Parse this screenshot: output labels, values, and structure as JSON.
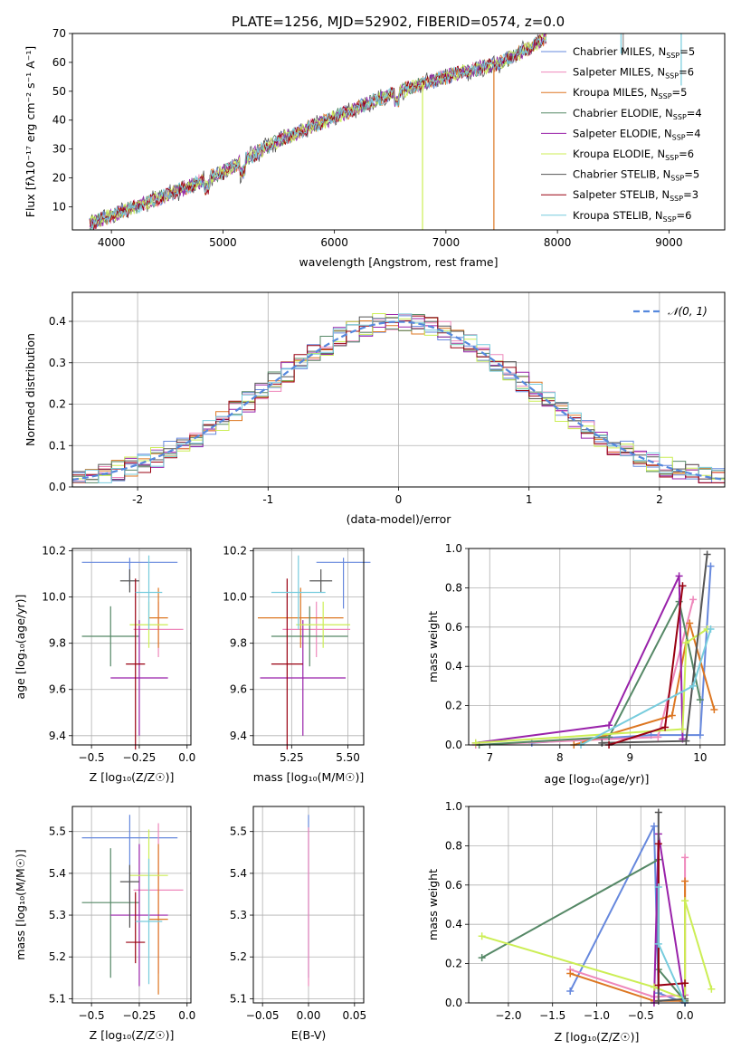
{
  "figure_title": "PLATE=1256, MJD=52902, FIBERID=0574, z=0.0",
  "series_colors": [
    "#6688dd",
    "#ee88bb",
    "#dd7722",
    "#558866",
    "#9922aa",
    "#ccee55",
    "#555555",
    "#990011",
    "#77ccdd"
  ],
  "chart_data": [
    {
      "type": "line",
      "panel": "spectrum",
      "xlabel": "wavelength [Angstrom, rest frame]",
      "ylabel": "Flux [f",
      "ylabel_full": "Flux [fλ10⁻¹⁷ erg cm⁻² s⁻¹ A⁻¹]",
      "xlim": [
        3650,
        9500
      ],
      "ylim": [
        2,
        70
      ],
      "x_ticks": [
        4000,
        5000,
        6000,
        7000,
        8000,
        9000
      ],
      "y_ticks": [
        10,
        20,
        30,
        40,
        50,
        60,
        70
      ],
      "grid": false,
      "legend_position": "right",
      "legend": [
        "Chabrier MILES, N_SSP=5",
        "Salpeter MILES, N_SSP=6",
        "Kroupa MILES, N_SSP=5",
        "Chabrier ELODIE, N_SSP=4",
        "Salpeter ELODIE, N_SSP=4",
        "Kroupa ELODIE, N_SSP=6",
        "Chabrier STELIB, N_SSP=5",
        "Salpeter STELIB, N_SSP=3",
        "Kroupa STELIB, N_SSP=6"
      ],
      "legend_text": [
        {
          "pre": "Chabrier MILES, N",
          "sub": "SSP",
          "post": "=5"
        },
        {
          "pre": "Salpeter MILES, N",
          "sub": "SSP",
          "post": "=6"
        },
        {
          "pre": "Kroupa MILES, N",
          "sub": "SSP",
          "post": "=5"
        },
        {
          "pre": "Chabrier ELODIE, N",
          "sub": "SSP",
          "post": "=4"
        },
        {
          "pre": "Salpeter ELODIE, N",
          "sub": "SSP",
          "post": "=4"
        },
        {
          "pre": "Kroupa ELODIE, N",
          "sub": "SSP",
          "post": "=6"
        },
        {
          "pre": "Chabrier STELIB, N",
          "sub": "SSP",
          "post": "=5"
        },
        {
          "pre": "Salpeter STELIB, N",
          "sub": "SSP",
          "post": "=3"
        },
        {
          "pre": "Kroupa STELIB, N",
          "sub": "SSP",
          "post": "=6"
        }
      ],
      "approx_continuum": {
        "wavelength": [
          3800,
          4000,
          4500,
          5000,
          5500,
          6000,
          6500,
          7000,
          7500,
          7800
        ],
        "flux": [
          4,
          7,
          14,
          22,
          33,
          41,
          49,
          55,
          60,
          66
        ]
      }
    },
    {
      "type": "line",
      "panel": "residual-distribution",
      "xlabel": "(data-model)/error",
      "ylabel": "Normed distribution",
      "xlim": [
        -2.5,
        2.5
      ],
      "ylim": [
        0,
        0.47
      ],
      "x_ticks": [
        -2,
        -1,
        0,
        1,
        2
      ],
      "y_ticks": [
        0.0,
        0.1,
        0.2,
        0.3,
        0.4
      ],
      "grid": true,
      "legend": [
        "𝒩(0, 1)"
      ],
      "legend_position": "top-right",
      "series": [
        {
          "name": "𝒩(0, 1)",
          "style": "dashed",
          "color": "#5588dd"
        }
      ]
    },
    {
      "type": "scatter",
      "panel": "age-vs-Z",
      "xlabel": "Z [log10(Z/Z☉)]",
      "ylabel": "age [log10(age/yr)]",
      "xlim": [
        -0.6,
        0.02
      ],
      "ylim": [
        9.36,
        10.21
      ],
      "x_ticks": [
        -0.5,
        -0.25,
        0.0
      ],
      "x_tick_labels": [
        "−0.5",
        "−0.25",
        "0.0"
      ],
      "y_ticks": [
        9.4,
        9.6,
        9.8,
        10.0,
        10.2
      ],
      "grid": true,
      "points": [
        {
          "x": -0.3,
          "y": 10.15,
          "xerr": [
            0.25,
            0.25
          ],
          "yerr": [
            0.1,
            0.02
          ]
        },
        {
          "x": -0.15,
          "y": 9.86,
          "xerr": [
            0.13,
            0.13
          ],
          "yerr": [
            0.12,
            0.12
          ]
        },
        {
          "x": -0.15,
          "y": 9.91,
          "xerr": [
            0.05,
            0.05
          ],
          "yerr": [
            0.13,
            0.13
          ]
        },
        {
          "x": -0.4,
          "y": 9.83,
          "xerr": [
            0.15,
            0.15
          ],
          "yerr": [
            0.13,
            0.13
          ]
        },
        {
          "x": -0.25,
          "y": 9.65,
          "xerr": [
            0.15,
            0.15
          ],
          "yerr": [
            0.25,
            0.25
          ]
        },
        {
          "x": -0.2,
          "y": 9.88,
          "xerr": [
            0.1,
            0.1
          ],
          "yerr": [
            0.1,
            0.1
          ]
        },
        {
          "x": -0.3,
          "y": 10.07,
          "xerr": [
            0.05,
            0.05
          ],
          "yerr": [
            0.05,
            0.05
          ]
        },
        {
          "x": -0.27,
          "y": 9.71,
          "xerr": [
            0.05,
            0.05
          ],
          "yerr": [
            0.37,
            0.37
          ]
        },
        {
          "x": -0.2,
          "y": 10.02,
          "xerr": [
            0.07,
            0.07
          ],
          "yerr": [
            0.16,
            0.16
          ]
        }
      ]
    },
    {
      "type": "scatter",
      "panel": "age-vs-mass",
      "xlabel": "mass [log10(M/M☉)]",
      "ylabel": "",
      "xlim": [
        5.08,
        5.57
      ],
      "ylim": [
        9.36,
        10.21
      ],
      "x_ticks": [
        5.25,
        5.5
      ],
      "y_ticks": [
        9.4,
        9.6,
        9.8,
        10.0,
        10.2
      ],
      "grid": true,
      "points": [
        {
          "x": 5.48,
          "y": 10.15,
          "xerr": [
            0.12,
            0.12
          ],
          "yerr": [
            0.2,
            0.02
          ]
        },
        {
          "x": 5.36,
          "y": 9.86,
          "xerr": [
            0.15,
            0.15
          ],
          "yerr": [
            0.12,
            0.12
          ]
        },
        {
          "x": 5.29,
          "y": 9.91,
          "xerr": [
            0.19,
            0.19
          ],
          "yerr": [
            0.13,
            0.13
          ]
        },
        {
          "x": 5.33,
          "y": 9.83,
          "xerr": [
            0.17,
            0.17
          ],
          "yerr": [
            0.13,
            0.13
          ]
        },
        {
          "x": 5.3,
          "y": 9.65,
          "xerr": [
            0.19,
            0.19
          ],
          "yerr": [
            0.25,
            0.25
          ]
        },
        {
          "x": 5.39,
          "y": 9.88,
          "xerr": [
            0.12,
            0.12
          ],
          "yerr": [
            0.1,
            0.1
          ]
        },
        {
          "x": 5.38,
          "y": 10.07,
          "xerr": [
            0.05,
            0.05
          ],
          "yerr": [
            0.05,
            0.05
          ]
        },
        {
          "x": 5.23,
          "y": 9.71,
          "xerr": [
            0.07,
            0.07
          ],
          "yerr": [
            0.37,
            0.37
          ]
        },
        {
          "x": 5.28,
          "y": 10.02,
          "xerr": [
            0.12,
            0.12
          ],
          "yerr": [
            0.16,
            0.16
          ]
        }
      ]
    },
    {
      "type": "line",
      "panel": "mass-weight-vs-age",
      "xlabel": "age [log10(age/yr)]",
      "ylabel": "mass weight",
      "xlim": [
        6.7,
        10.35
      ],
      "ylim": [
        0.0,
        1.0
      ],
      "x_ticks": [
        7,
        8,
        9,
        10
      ],
      "y_ticks": [
        0.0,
        0.2,
        0.4,
        0.6,
        0.8,
        1.0
      ],
      "grid": true,
      "series": [
        {
          "x": [
            7.6,
            9.3,
            10.0,
            10.15
          ],
          "y": [
            0.01,
            0.05,
            0.05,
            0.91
          ]
        },
        {
          "x": [
            6.8,
            9.4,
            9.9
          ],
          "y": [
            0.0,
            0.04,
            0.74
          ]
        },
        {
          "x": [
            8.2,
            9.6,
            9.85,
            10.2
          ],
          "y": [
            0.0,
            0.15,
            0.62,
            0.18
          ]
        },
        {
          "x": [
            6.85,
            8.7,
            9.7,
            10.0
          ],
          "y": [
            0.0,
            0.04,
            0.73,
            0.23
          ]
        },
        {
          "x": [
            6.8,
            8.7,
            9.7,
            9.75
          ],
          "y": [
            0.01,
            0.1,
            0.86,
            0.03
          ]
        },
        {
          "x": [
            6.8,
            9.75,
            9.8,
            10.1
          ],
          "y": [
            0.01,
            0.08,
            0.52,
            0.59
          ]
        },
        {
          "x": [
            8.6,
            9.8,
            10.1
          ],
          "y": [
            0.01,
            0.02,
            0.97
          ]
        },
        {
          "x": [
            8.7,
            9.5,
            9.75
          ],
          "y": [
            0.0,
            0.09,
            0.81
          ]
        },
        {
          "x": [
            8.3,
            9.9,
            10.15
          ],
          "y": [
            0.0,
            0.3,
            0.59
          ]
        }
      ]
    },
    {
      "type": "scatter",
      "panel": "mass-vs-Z",
      "xlabel": "Z [log10(Z/Z☉)]",
      "ylabel": "mass [log10(M/M☉)]",
      "xlim": [
        -0.6,
        0.02
      ],
      "ylim": [
        5.09,
        5.56
      ],
      "x_ticks": [
        -0.5,
        -0.25,
        0.0
      ],
      "x_tick_labels": [
        "−0.5",
        "−0.25",
        "0.0"
      ],
      "y_ticks": [
        5.1,
        5.2,
        5.3,
        5.4,
        5.5
      ],
      "grid": true,
      "points": [
        {
          "x": -0.3,
          "y": 5.485,
          "xerr": [
            0.25,
            0.25
          ],
          "yerr": [
            0.15,
            0.055
          ]
        },
        {
          "x": -0.15,
          "y": 5.36,
          "xerr": [
            0.13,
            0.13
          ],
          "yerr": [
            0.2,
            0.16
          ]
        },
        {
          "x": -0.15,
          "y": 5.29,
          "xerr": [
            0.05,
            0.05
          ],
          "yerr": [
            0.18,
            0.18
          ]
        },
        {
          "x": -0.4,
          "y": 5.33,
          "xerr": [
            0.15,
            0.15
          ],
          "yerr": [
            0.18,
            0.13
          ]
        },
        {
          "x": -0.25,
          "y": 5.3,
          "xerr": [
            0.15,
            0.15
          ],
          "yerr": [
            0.17,
            0.17
          ]
        },
        {
          "x": -0.2,
          "y": 5.395,
          "xerr": [
            0.1,
            0.1
          ],
          "yerr": [
            0.11,
            0.11
          ]
        },
        {
          "x": -0.3,
          "y": 5.38,
          "xerr": [
            0.05,
            0.05
          ],
          "yerr": [
            0.11,
            0.04
          ]
        },
        {
          "x": -0.27,
          "y": 5.235,
          "xerr": [
            0.05,
            0.05
          ],
          "yerr": [
            0.05,
            0.12
          ]
        },
        {
          "x": -0.2,
          "y": 5.285,
          "xerr": [
            0.07,
            0.07
          ],
          "yerr": [
            0.15,
            0.15
          ]
        }
      ]
    },
    {
      "type": "scatter",
      "panel": "mass-vs-EBV",
      "xlabel": "E(B-V)",
      "ylabel": "",
      "xlim": [
        -0.06,
        0.06
      ],
      "ylim": [
        5.09,
        5.56
      ],
      "x_ticks": [
        -0.05,
        0.0,
        0.05
      ],
      "x_tick_labels": [
        "−0.05",
        "0.00",
        "0.05"
      ],
      "y_ticks": [
        5.1,
        5.2,
        5.3,
        5.4,
        5.5
      ],
      "grid": true,
      "points": [
        {
          "x": 0.0,
          "y": 5.45,
          "xerr": [
            0,
            0
          ],
          "yerr": [
            0.3,
            0.09
          ]
        },
        {
          "x": 0.0,
          "y": 5.43,
          "xerr": [
            0,
            0
          ],
          "yerr": [
            0.3,
            0.08
          ]
        }
      ]
    },
    {
      "type": "line",
      "panel": "mass-weight-vs-Z",
      "xlabel": "Z [log10(Z/Z☉)]",
      "ylabel": "mass weight",
      "xlim": [
        -2.45,
        0.45
      ],
      "ylim": [
        0.0,
        1.0
      ],
      "x_ticks": [
        -2.0,
        -1.5,
        -1.0,
        -0.5,
        0.0
      ],
      "x_tick_labels": [
        "−2.0",
        "−1.5",
        "−1.0",
        "−0.5",
        "0.0"
      ],
      "y_ticks": [
        0.0,
        0.2,
        0.4,
        0.6,
        0.8,
        1.0
      ],
      "grid": true,
      "series": [
        {
          "x": [
            -1.3,
            -0.35,
            -0.3,
            0.0
          ],
          "y": [
            0.06,
            0.9,
            0.05,
            0.0
          ]
        },
        {
          "x": [
            -1.3,
            -0.35,
            -0.0,
            0.0
          ],
          "y": [
            0.17,
            0.03,
            0.04,
            0.74
          ]
        },
        {
          "x": [
            -1.3,
            -0.35,
            0.0,
            0.0
          ],
          "y": [
            0.15,
            0.01,
            0.01,
            0.62
          ]
        },
        {
          "x": [
            -2.3,
            -0.3,
            -0.3,
            0.0
          ],
          "y": [
            0.23,
            0.73,
            0.17,
            0.01
          ]
        },
        {
          "x": [
            -0.35,
            -0.3,
            0.0
          ],
          "y": [
            0.0,
            0.86,
            0.0
          ]
        },
        {
          "x": [
            -2.3,
            -0.35,
            0.0,
            0.0,
            0.3
          ],
          "y": [
            0.34,
            0.08,
            0.02,
            0.52,
            0.07
          ]
        },
        {
          "x": [
            -0.3,
            -0.3,
            0.0
          ],
          "y": [
            0.97,
            0.01,
            0.02
          ]
        },
        {
          "x": [
            -0.3,
            -0.3,
            0.0
          ],
          "y": [
            0.81,
            0.09,
            0.1
          ]
        },
        {
          "x": [
            -0.3,
            -0.3,
            0.0
          ],
          "y": [
            0.59,
            0.3,
            0.0
          ]
        }
      ]
    }
  ]
}
